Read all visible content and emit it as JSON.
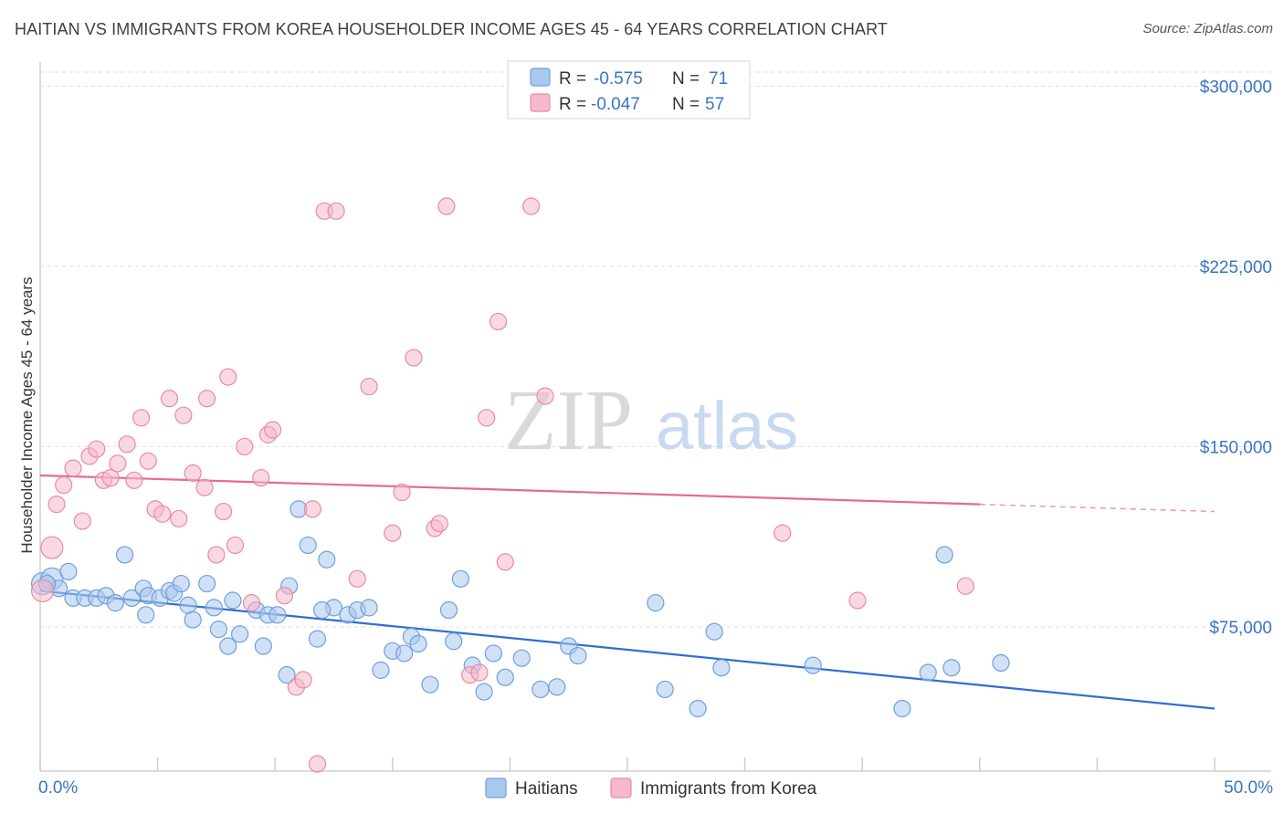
{
  "header": {
    "title": "HAITIAN VS IMMIGRANTS FROM KOREA HOUSEHOLDER INCOME AGES 45 - 64 YEARS CORRELATION CHART",
    "source": "Source: ZipAtlas.com"
  },
  "watermark": {
    "zip": "ZIP",
    "atlas": "atlas"
  },
  "legend_top": {
    "rows": [
      {
        "r_label": "R =",
        "r_value": "-0.575",
        "n_label": "N =",
        "n_value": "71",
        "color": "#a9c8ee"
      },
      {
        "r_label": "R =",
        "r_value": "-0.047",
        "n_label": "N =",
        "n_value": "57",
        "color": "#f6b8cb"
      }
    ]
  },
  "legend_bottom": {
    "items": [
      {
        "label": "Haitians",
        "color": "#a9c8ee"
      },
      {
        "label": "Immigrants from Korea",
        "color": "#f6b8cb"
      }
    ]
  },
  "chart_data": {
    "type": "scatter",
    "title": "HAITIAN VS IMMIGRANTS FROM KOREA HOUSEHOLDER INCOME AGES 45 - 64 YEARS CORRELATION CHART",
    "xlabel": "",
    "ylabel": "Householder Income Ages 45 - 64 years",
    "xlim": [
      0,
      50
    ],
    "ylim": [
      15000,
      310000
    ],
    "x_tick_labels": [
      "0.0%",
      "50.0%"
    ],
    "y_ticks": [
      75000,
      150000,
      225000,
      300000
    ],
    "y_tick_labels": [
      "$75,000",
      "$150,000",
      "$225,000",
      "$300,000"
    ],
    "grid": true,
    "series": [
      {
        "name": "Haitians",
        "color": "#a9c8ee",
        "stroke": "#6f9fdc",
        "trend_color": "#2f6fd1",
        "trend": {
          "x0": 0,
          "y0": 90000,
          "x1": 50,
          "y1": 41000
        },
        "points": [
          [
            0.1,
            93000
          ],
          [
            0.5,
            95000
          ],
          [
            0.8,
            91000
          ],
          [
            1.2,
            98000
          ],
          [
            1.4,
            87000
          ],
          [
            1.9,
            87000
          ],
          [
            2.4,
            87000
          ],
          [
            2.8,
            88000
          ],
          [
            3.2,
            85000
          ],
          [
            3.6,
            105000
          ],
          [
            3.9,
            87000
          ],
          [
            4.4,
            91000
          ],
          [
            4.6,
            88000
          ],
          [
            4.5,
            80000
          ],
          [
            5.1,
            87000
          ],
          [
            5.5,
            90000
          ],
          [
            5.7,
            89000
          ],
          [
            6.0,
            93000
          ],
          [
            6.3,
            84000
          ],
          [
            6.5,
            78000
          ],
          [
            7.1,
            93000
          ],
          [
            7.4,
            83000
          ],
          [
            7.6,
            74000
          ],
          [
            8.2,
            86000
          ],
          [
            8.5,
            72000
          ],
          [
            8.0,
            67000
          ],
          [
            9.2,
            82000
          ],
          [
            9.5,
            67000
          ],
          [
            9.7,
            80000
          ],
          [
            10.1,
            80000
          ],
          [
            10.6,
            92000
          ],
          [
            11.0,
            124000
          ],
          [
            10.5,
            55000
          ],
          [
            11.4,
            109000
          ],
          [
            11.8,
            70000
          ],
          [
            12.2,
            103000
          ],
          [
            12.5,
            83000
          ],
          [
            13.1,
            80000
          ],
          [
            13.5,
            82000
          ],
          [
            14.0,
            83000
          ],
          [
            14.5,
            57000
          ],
          [
            15.0,
            65000
          ],
          [
            15.5,
            64000
          ],
          [
            15.8,
            71000
          ],
          [
            16.1,
            68000
          ],
          [
            16.6,
            51000
          ],
          [
            17.4,
            82000
          ],
          [
            17.6,
            69000
          ],
          [
            17.9,
            95000
          ],
          [
            18.4,
            59000
          ],
          [
            18.9,
            48000
          ],
          [
            19.3,
            64000
          ],
          [
            19.8,
            54000
          ],
          [
            20.5,
            62000
          ],
          [
            21.3,
            49000
          ],
          [
            22.0,
            50000
          ],
          [
            22.5,
            67000
          ],
          [
            22.9,
            63000
          ],
          [
            26.2,
            85000
          ],
          [
            26.6,
            49000
          ],
          [
            28.0,
            41000
          ],
          [
            28.7,
            73000
          ],
          [
            29.0,
            58000
          ],
          [
            32.9,
            59000
          ],
          [
            36.7,
            41000
          ],
          [
            37.8,
            56000
          ],
          [
            38.8,
            58000
          ],
          [
            38.5,
            105000
          ],
          [
            40.9,
            60000
          ],
          [
            0.3,
            93000
          ],
          [
            12.0,
            82000
          ]
        ]
      },
      {
        "name": "Immigrants from Korea",
        "color": "#f6b8cb",
        "stroke": "#e88aa6",
        "trend_color": "#e46a91",
        "trend": {
          "x0": 0,
          "y0": 138000,
          "x1": 40,
          "y1": 126000,
          "dash_x1": 50,
          "dash_y1": 123000
        },
        "points": [
          [
            0.1,
            90000
          ],
          [
            0.5,
            108000
          ],
          [
            0.7,
            126000
          ],
          [
            1.0,
            134000
          ],
          [
            1.4,
            141000
          ],
          [
            1.8,
            119000
          ],
          [
            2.1,
            146000
          ],
          [
            2.4,
            149000
          ],
          [
            2.7,
            136000
          ],
          [
            3.0,
            137000
          ],
          [
            3.3,
            143000
          ],
          [
            3.7,
            151000
          ],
          [
            4.0,
            136000
          ],
          [
            4.3,
            162000
          ],
          [
            4.6,
            144000
          ],
          [
            4.9,
            124000
          ],
          [
            5.2,
            122000
          ],
          [
            5.5,
            170000
          ],
          [
            5.9,
            120000
          ],
          [
            6.1,
            163000
          ],
          [
            6.5,
            139000
          ],
          [
            7.0,
            133000
          ],
          [
            7.1,
            170000
          ],
          [
            7.5,
            105000
          ],
          [
            7.8,
            123000
          ],
          [
            8.0,
            179000
          ],
          [
            8.3,
            109000
          ],
          [
            8.7,
            150000
          ],
          [
            9.0,
            85000
          ],
          [
            9.4,
            137000
          ],
          [
            9.7,
            155000
          ],
          [
            9.9,
            157000
          ],
          [
            10.4,
            88000
          ],
          [
            10.9,
            50000
          ],
          [
            11.2,
            53000
          ],
          [
            11.6,
            124000
          ],
          [
            12.1,
            248000
          ],
          [
            12.6,
            248000
          ],
          [
            13.5,
            95000
          ],
          [
            14.0,
            175000
          ],
          [
            15.0,
            114000
          ],
          [
            15.4,
            131000
          ],
          [
            15.9,
            187000
          ],
          [
            16.8,
            116000
          ],
          [
            17.0,
            118000
          ],
          [
            17.3,
            250000
          ],
          [
            18.3,
            55000
          ],
          [
            18.7,
            56000
          ],
          [
            19.0,
            162000
          ],
          [
            19.5,
            202000
          ],
          [
            19.8,
            102000
          ],
          [
            20.9,
            250000
          ],
          [
            21.5,
            171000
          ],
          [
            31.6,
            114000
          ],
          [
            34.8,
            86000
          ],
          [
            39.4,
            92000
          ],
          [
            11.8,
            18000
          ]
        ]
      }
    ]
  }
}
